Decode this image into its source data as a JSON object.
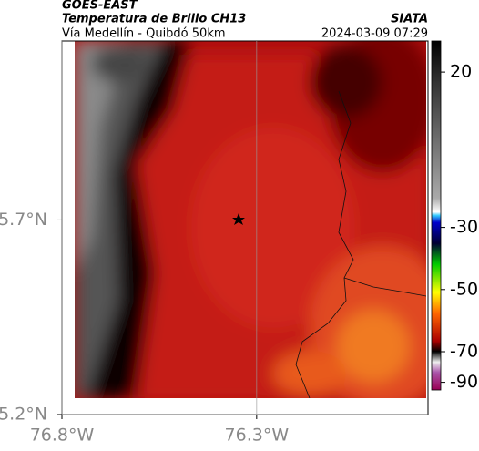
{
  "header": {
    "satellite": "GOES-EAST",
    "title": "Temperatura de Brillo CH13",
    "route": "Vía Medellín - Quibdó 50km",
    "source": "SIATA",
    "timestamp": "2024-03-09 07:29"
  },
  "map": {
    "xlim": [
      -76.8,
      -75.86
    ],
    "ylim": [
      5.2,
      6.16
    ],
    "xticks": [
      {
        "value": -76.8,
        "label": "76.8°W"
      },
      {
        "value": -76.3,
        "label": "76.3°W"
      }
    ],
    "yticks": [
      {
        "value": 5.7,
        "label": "5.7°N"
      },
      {
        "value": 5.2,
        "label": "5.2°N"
      }
    ],
    "grid": true
  },
  "colorbar": {
    "ticks": [
      20,
      -30,
      -50,
      -70,
      -90
    ]
  }
}
